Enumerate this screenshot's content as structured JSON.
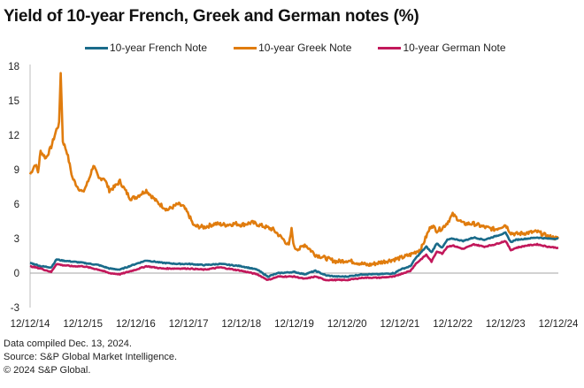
{
  "chart_data": {
    "type": "line",
    "title": "Yield of 10-year French, Greek and German notes (%)",
    "xlabel": "",
    "ylabel": "",
    "ylim": [
      -3,
      18
    ],
    "yticks": [
      18,
      15,
      12,
      9,
      6,
      3,
      0,
      -3
    ],
    "ytick_labels": [
      "18",
      "15",
      "12",
      "9",
      "6",
      "3",
      "0",
      "-3"
    ],
    "xlim": [
      0,
      10
    ],
    "xticks": [
      0,
      1,
      2,
      3,
      4,
      5,
      6,
      7,
      8,
      9,
      10
    ],
    "xtick_labels": [
      "12/12/14",
      "12/12/15",
      "12/12/16",
      "12/12/17",
      "12/12/18",
      "12/12/19",
      "12/12/20",
      "12/12/21",
      "12/12/22",
      "12/12/23",
      "12/12/24"
    ],
    "x_units": "years since 12/12/14",
    "legend_position": "top-center",
    "grid": false,
    "series": [
      {
        "name": "10-year French Note",
        "color": "#1a6b8a",
        "x": [
          0,
          0.2,
          0.4,
          0.5,
          0.6,
          0.8,
          1.0,
          1.3,
          1.5,
          1.7,
          2.0,
          2.2,
          2.5,
          2.8,
          3.0,
          3.3,
          3.6,
          4.0,
          4.3,
          4.5,
          4.7,
          5.0,
          5.2,
          5.4,
          5.6,
          5.8,
          6.0,
          6.3,
          6.6,
          6.9,
          7.0,
          7.2,
          7.3,
          7.4,
          7.5,
          7.6,
          7.7,
          7.8,
          7.9,
          8.0,
          8.2,
          8.4,
          8.6,
          8.8,
          9.0,
          9.1,
          9.2,
          9.4,
          9.6,
          9.8,
          10.0
        ],
        "y": [
          0.9,
          0.6,
          0.5,
          1.2,
          1.1,
          1.0,
          0.9,
          0.7,
          0.4,
          0.3,
          0.8,
          1.1,
          0.9,
          0.8,
          0.8,
          0.7,
          0.8,
          0.6,
          0.3,
          -0.3,
          0.0,
          0.1,
          -0.1,
          0.2,
          -0.2,
          -0.3,
          -0.3,
          -0.1,
          -0.1,
          0.0,
          0.3,
          0.6,
          1.3,
          1.8,
          2.3,
          1.8,
          2.6,
          2.2,
          2.9,
          3.0,
          2.8,
          3.1,
          2.9,
          3.2,
          3.5,
          2.7,
          2.9,
          3.0,
          3.1,
          3.0,
          3.0
        ]
      },
      {
        "name": "10-year Greek Note",
        "color": "#e07c0e",
        "x": [
          0,
          0.1,
          0.15,
          0.2,
          0.3,
          0.4,
          0.5,
          0.55,
          0.58,
          0.62,
          0.7,
          0.8,
          0.9,
          1.0,
          1.1,
          1.2,
          1.3,
          1.4,
          1.5,
          1.6,
          1.7,
          1.8,
          1.9,
          2.0,
          2.2,
          2.4,
          2.6,
          2.8,
          2.9,
          3.0,
          3.1,
          3.3,
          3.5,
          3.7,
          3.9,
          4.0,
          4.2,
          4.4,
          4.6,
          4.8,
          4.9,
          4.95,
          5.0,
          5.1,
          5.2,
          5.4,
          5.6,
          5.8,
          6.0,
          6.2,
          6.4,
          6.6,
          6.8,
          7.0,
          7.2,
          7.4,
          7.5,
          7.6,
          7.7,
          7.8,
          7.9,
          8.0,
          8.2,
          8.4,
          8.6,
          8.8,
          9.0,
          9.1,
          9.2,
          9.4,
          9.6,
          9.8,
          10.0
        ],
        "y": [
          8.6,
          9.5,
          8.8,
          10.6,
          10.0,
          11.0,
          12.5,
          13.0,
          17.5,
          11.5,
          10.5,
          8.3,
          7.5,
          7.0,
          8.0,
          9.4,
          8.2,
          8.3,
          7.2,
          7.5,
          8.0,
          7.2,
          6.5,
          6.6,
          7.2,
          6.2,
          5.5,
          6.0,
          5.8,
          5.1,
          4.1,
          4.0,
          4.3,
          4.2,
          4.3,
          4.2,
          4.4,
          4.1,
          3.8,
          2.9,
          2.4,
          3.8,
          2.2,
          2.1,
          2.5,
          1.6,
          1.3,
          1.0,
          1.1,
          0.9,
          0.7,
          0.9,
          1.1,
          1.3,
          1.6,
          2.1,
          3.2,
          4.2,
          3.7,
          3.9,
          4.4,
          5.1,
          4.3,
          4.3,
          4.0,
          3.8,
          4.2,
          3.5,
          3.4,
          3.5,
          3.6,
          3.2,
          3.0
        ]
      },
      {
        "name": "10-year German Note",
        "color": "#c2185b",
        "x": [
          0,
          0.2,
          0.4,
          0.5,
          0.6,
          0.8,
          1.0,
          1.3,
          1.5,
          1.7,
          2.0,
          2.2,
          2.5,
          2.8,
          3.0,
          3.3,
          3.6,
          4.0,
          4.3,
          4.5,
          4.7,
          5.0,
          5.2,
          5.4,
          5.6,
          5.8,
          6.0,
          6.3,
          6.6,
          6.9,
          7.0,
          7.2,
          7.3,
          7.4,
          7.5,
          7.6,
          7.7,
          7.8,
          7.9,
          8.0,
          8.2,
          8.4,
          8.6,
          8.8,
          9.0,
          9.1,
          9.2,
          9.4,
          9.6,
          9.8,
          10.0
        ],
        "y": [
          0.6,
          0.4,
          0.1,
          0.8,
          0.7,
          0.6,
          0.6,
          0.3,
          0.0,
          -0.1,
          0.3,
          0.6,
          0.4,
          0.4,
          0.4,
          0.3,
          0.5,
          0.2,
          -0.1,
          -0.6,
          -0.3,
          -0.3,
          -0.5,
          -0.3,
          -0.6,
          -0.6,
          -0.6,
          -0.4,
          -0.4,
          -0.3,
          -0.1,
          0.2,
          0.8,
          1.2,
          1.6,
          1.0,
          1.9,
          1.7,
          2.3,
          2.4,
          2.1,
          2.5,
          2.3,
          2.5,
          2.8,
          2.0,
          2.2,
          2.4,
          2.5,
          2.3,
          2.2
        ]
      }
    ]
  },
  "footer": {
    "line1": "Data compiled Dec. 13, 2024.",
    "line2": "Source: S&P Global Market Intelligence.",
    "line3": "© 2024 S&P Global."
  }
}
